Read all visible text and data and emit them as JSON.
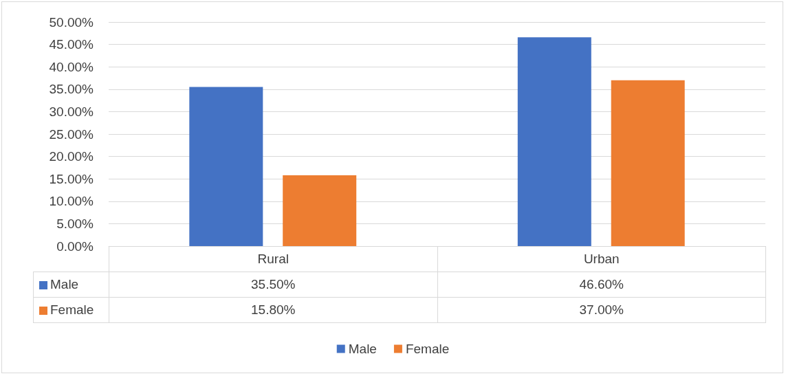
{
  "chart_data": {
    "type": "bar",
    "categories": [
      "Rural",
      "Urban"
    ],
    "series": [
      {
        "name": "Male",
        "color": "#4472c4",
        "values": [
          35.5,
          46.6
        ],
        "value_labels": [
          "35.50%",
          "46.60%"
        ]
      },
      {
        "name": "Female",
        "color": "#ed7d31",
        "values": [
          15.8,
          37.0
        ],
        "value_labels": [
          "15.80%",
          "37.00%"
        ]
      }
    ],
    "ylim": [
      0,
      50
    ],
    "yticks": [
      {
        "value": 0,
        "label": "0.00%"
      },
      {
        "value": 5,
        "label": "5.00%"
      },
      {
        "value": 10,
        "label": "10.00%"
      },
      {
        "value": 15,
        "label": "15.00%"
      },
      {
        "value": 20,
        "label": "20.00%"
      },
      {
        "value": 25,
        "label": "25.00%"
      },
      {
        "value": 30,
        "label": "30.00%"
      },
      {
        "value": 35,
        "label": "35.00%"
      },
      {
        "value": 40,
        "label": "40.00%"
      },
      {
        "value": 45,
        "label": "45.00%"
      },
      {
        "value": 50,
        "label": "50.00%"
      }
    ],
    "grid": "y",
    "legend": "bottom"
  }
}
